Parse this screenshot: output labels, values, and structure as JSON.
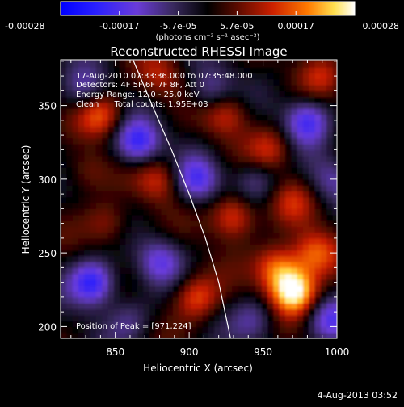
{
  "colorbar": {
    "ticks": [
      "-0.00028",
      "-0.00017",
      "-5.7e-05",
      "5.7e-05",
      "0.00017",
      "0.00028"
    ],
    "units_text": "(photons cm⁻² s⁻¹ asec⁻²)",
    "range": [
      -0.00028,
      0.00028
    ]
  },
  "plot": {
    "title": "Reconstructed RHESSI Image",
    "annotations": [
      "17-Aug-2010 07:33:36.000 to 07:35:48.000",
      "Detectors: 4F 5F 6F 7F 8F, Att 0",
      "Energy Range: 12.0 - 25.0 keV",
      "Clean      Total counts: 1.95E+03"
    ],
    "peak_text": "Position of Peak = [971,224]"
  },
  "footer": {
    "date": "4-Aug-2013 03:52"
  },
  "colors": {
    "background": "#000000",
    "text": "#ffffff",
    "limb": "#ffffff"
  },
  "chart_data": {
    "type": "heatmap",
    "title": "Reconstructed RHESSI Image",
    "xlabel": "Heliocentric X (arcsec)",
    "ylabel": "Heliocentric Y (arcsec)",
    "xlim": [
      813,
      1000
    ],
    "ylim": [
      192,
      381
    ],
    "x_ticks": [
      850,
      900,
      950,
      1000
    ],
    "y_ticks": [
      200,
      250,
      300,
      350
    ],
    "x_tick_labels": [
      "850",
      "900",
      "950",
      "1000"
    ],
    "y_tick_labels": [
      "200",
      "250",
      "300",
      "350"
    ],
    "colormap": "blue-purple-black-red-yellow-white",
    "value_range": [
      -0.00028,
      0.00028
    ],
    "peak_position": [
      971,
      224
    ],
    "limb_curve": [
      [
        862,
        381
      ],
      [
        875,
        350
      ],
      [
        888,
        320
      ],
      [
        900,
        290
      ],
      [
        911,
        260
      ],
      [
        920,
        230
      ],
      [
        928,
        192
      ]
    ],
    "blobs": [
      {
        "x": 971,
        "y": 224,
        "value": 0.00028
      },
      {
        "x": 960,
        "y": 240,
        "value": 0.00018
      },
      {
        "x": 985,
        "y": 250,
        "value": 0.00016
      },
      {
        "x": 930,
        "y": 275,
        "value": 0.00017
      },
      {
        "x": 905,
        "y": 220,
        "value": 0.00015
      },
      {
        "x": 840,
        "y": 345,
        "value": 0.00016
      },
      {
        "x": 880,
        "y": 300,
        "value": 0.00012
      },
      {
        "x": 925,
        "y": 345,
        "value": 0.00013
      },
      {
        "x": 955,
        "y": 320,
        "value": 0.00012
      },
      {
        "x": 990,
        "y": 372,
        "value": 0.0001
      },
      {
        "x": 845,
        "y": 270,
        "value": 0.0001
      },
      {
        "x": 880,
        "y": 370,
        "value": 9e-05
      },
      {
        "x": 830,
        "y": 305,
        "value": 8e-05
      },
      {
        "x": 970,
        "y": 285,
        "value": 9e-05
      },
      {
        "x": 835,
        "y": 230,
        "value": -0.00022
      },
      {
        "x": 865,
        "y": 325,
        "value": -0.0002
      },
      {
        "x": 905,
        "y": 300,
        "value": -0.00016
      },
      {
        "x": 980,
        "y": 340,
        "value": -0.00018
      },
      {
        "x": 915,
        "y": 360,
        "value": -0.00012
      },
      {
        "x": 830,
        "y": 360,
        "value": -0.00011
      },
      {
        "x": 880,
        "y": 245,
        "value": -0.00013
      },
      {
        "x": 945,
        "y": 300,
        "value": -0.0001
      },
      {
        "x": 945,
        "y": 205,
        "value": -0.0001
      },
      {
        "x": 995,
        "y": 205,
        "value": -0.00013
      },
      {
        "x": 860,
        "y": 205,
        "value": -8e-05
      },
      {
        "x": 995,
        "y": 300,
        "value": -9e-05
      }
    ]
  }
}
